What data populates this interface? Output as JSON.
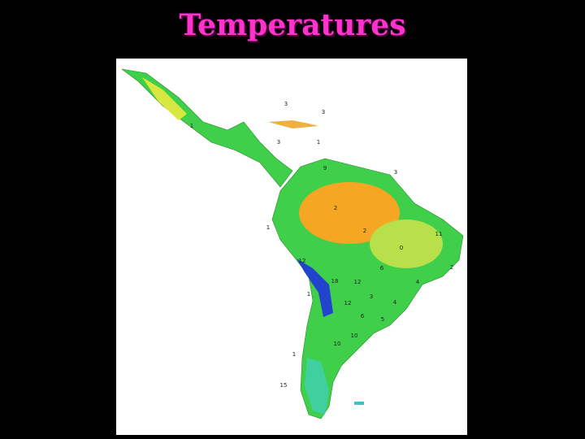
{
  "title": "Temperatures",
  "map": {
    "labels": [
      "3",
      "3",
      "1",
      "3",
      "1",
      "9",
      "3",
      "2",
      "1",
      "2",
      "11",
      "0",
      "12",
      "6",
      "2",
      "18",
      "12",
      "4",
      "1",
      "3",
      "12",
      "4",
      "6",
      "5",
      "10",
      "10",
      "1",
      "15"
    ]
  }
}
